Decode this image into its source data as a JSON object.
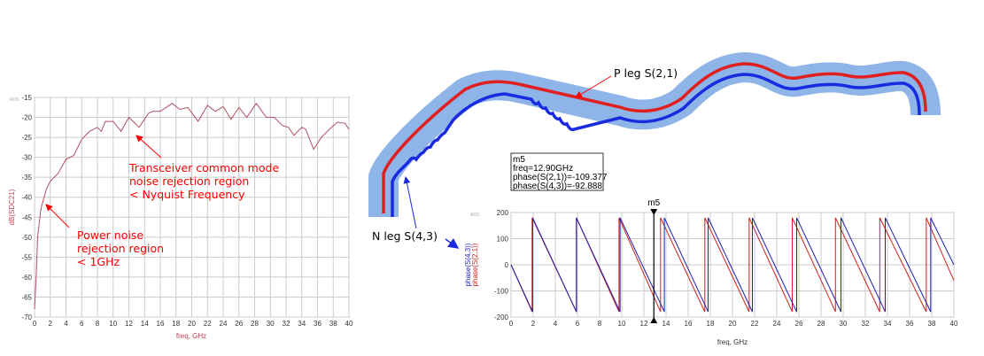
{
  "chart_data": [
    {
      "type": "line",
      "title": "",
      "brand_tag": "ADS",
      "xlabel": "freq, GHz",
      "ylabel": "dB(SDC21)",
      "xlim": [
        0,
        40
      ],
      "ylim": [
        -70,
        -15
      ],
      "grid": true,
      "x_ticks": [
        "0",
        "2",
        "4",
        "6",
        "8",
        "10",
        "12",
        "14",
        "16",
        "18",
        "20",
        "22",
        "24",
        "26",
        "28",
        "30",
        "32",
        "34",
        "36",
        "38",
        "40"
      ],
      "y_ticks": [
        "-15",
        "-20",
        "-25",
        "-30",
        "-35",
        "-40",
        "-45",
        "-50",
        "-55",
        "-60",
        "-65",
        "-70"
      ],
      "series": [
        {
          "name": "dB(SDC21)",
          "color": "#b05060",
          "points": [
            [
              0,
              -68
            ],
            [
              0.2,
              -60
            ],
            [
              0.4,
              -50
            ],
            [
              0.8,
              -43
            ],
            [
              1.5,
              -38
            ],
            [
              2,
              -36
            ],
            [
              3,
              -34
            ],
            [
              4,
              -30.5
            ],
            [
              5,
              -29.5
            ],
            [
              6,
              -25.5
            ],
            [
              7,
              -23.5
            ],
            [
              8,
              -22.5
            ],
            [
              8.5,
              -23.5
            ],
            [
              9,
              -21
            ],
            [
              10,
              -21
            ],
            [
              11,
              -23.5
            ],
            [
              12,
              -20
            ],
            [
              13.3,
              -22.5
            ],
            [
              14.5,
              -19
            ],
            [
              15,
              -18.5
            ],
            [
              16,
              -18.5
            ],
            [
              17.5,
              -16.5
            ],
            [
              18.5,
              -18
            ],
            [
              19.5,
              -17.5
            ],
            [
              20.8,
              -21
            ],
            [
              22,
              -17
            ],
            [
              23,
              -18.5
            ],
            [
              24,
              -17.3
            ],
            [
              25,
              -20.5
            ],
            [
              26,
              -17.5
            ],
            [
              27,
              -20
            ],
            [
              28.2,
              -16.5
            ],
            [
              29.5,
              -20
            ],
            [
              30.5,
              -20
            ],
            [
              31.5,
              -22
            ],
            [
              32.3,
              -22.5
            ],
            [
              33,
              -24.5
            ],
            [
              34,
              -22.5
            ],
            [
              34.5,
              -23
            ],
            [
              35.5,
              -28
            ],
            [
              36.5,
              -25
            ],
            [
              37.5,
              -23
            ],
            [
              38.5,
              -21.2
            ],
            [
              39.5,
              -21.5
            ],
            [
              40,
              -23
            ]
          ]
        }
      ],
      "annotations": [
        {
          "lines": [
            "Transceiver common mode",
            "noise rejection region",
            "< Nyquist Frequency"
          ],
          "points_to": [
            13,
            -22.5
          ]
        },
        {
          "lines": [
            "Power noise",
            "rejection region",
            "< 1GHz"
          ],
          "points_to": [
            1,
            -41
          ]
        }
      ]
    },
    {
      "type": "line",
      "brand_tag": "ADS",
      "xlabel": "freq, GHz",
      "ylabel_lines": [
        {
          "text": "phase(S(4,3))",
          "color": "#2020c0"
        },
        {
          "text": "phase(S(2,1))",
          "color": "#d02020"
        }
      ],
      "xlim": [
        0,
        40
      ],
      "ylim": [
        -200,
        200
      ],
      "grid": true,
      "x_ticks": [
        "0",
        "2",
        "4",
        "6",
        "8",
        "10",
        "12",
        "14",
        "16",
        "18",
        "20",
        "22",
        "24",
        "26",
        "28",
        "30",
        "32",
        "34",
        "36",
        "38",
        "40"
      ],
      "y_ticks": [
        "200",
        "100",
        "0",
        "-100",
        "-200"
      ],
      "series": [
        {
          "name": "phase(S(2,1))",
          "color": "#d02020",
          "start": 0,
          "wraps": [
            1.9,
            5.9,
            9.75,
            13.5,
            17.5,
            21.5,
            25.4,
            29.3,
            33.3,
            37.5
          ],
          "end": -60
        },
        {
          "name": "phase(S(4,3))",
          "color": "#2020b0",
          "start": 0,
          "wraps": [
            1.95,
            5.9,
            9.85,
            13.85,
            17.8,
            21.8,
            25.8,
            29.8,
            33.8,
            37.9
          ],
          "end": 0
        }
      ],
      "marker": {
        "name": "m5",
        "freq": 12.9,
        "readout": [
          "m5",
          "freq=12.90GHz",
          "phase(S(2,1))=-109.377",
          "phase(S(4,3))=-92.888"
        ]
      }
    }
  ],
  "diagram": {
    "p_leg_label": "P leg S(2,1)",
    "n_leg_label": "N leg S(4,3)",
    "colors": {
      "band": "#8fb4e8",
      "p_leg": "#e02020",
      "n_leg": "#1a2adf"
    }
  }
}
